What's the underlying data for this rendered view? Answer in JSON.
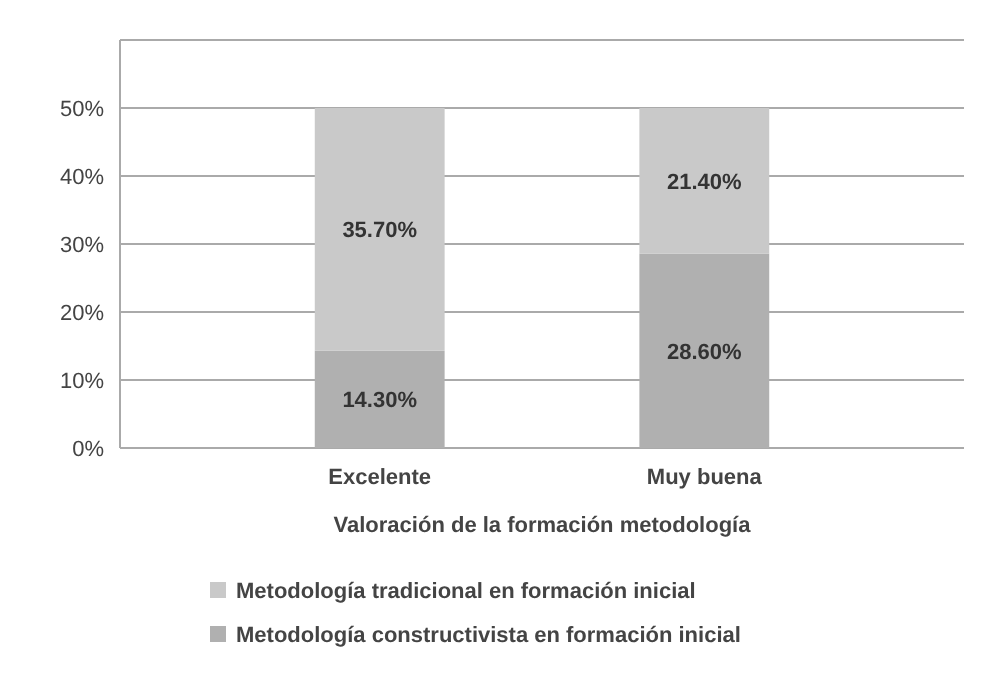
{
  "chart_data": {
    "type": "bar",
    "stacked": true,
    "xlabel": "Valoración de la formación metodología",
    "categories": [
      "Excelente",
      "Muy buena"
    ],
    "series": [
      {
        "name": "Metodología constructivista en formación inicial",
        "color": "#b0b0b0",
        "values": [
          14.3,
          28.6
        ],
        "value_labels": [
          "14.30%",
          "28.60%"
        ]
      },
      {
        "name": "Metodología tradicional en formación inicial",
        "color": "#c9c9c9",
        "values": [
          35.7,
          21.4
        ],
        "value_labels": [
          "35.70%",
          "21.40%"
        ]
      }
    ],
    "ylim": [
      0,
      60
    ],
    "yticks": [
      {
        "value": 0,
        "label": "0%"
      },
      {
        "value": 10,
        "label": "10%"
      },
      {
        "value": 20,
        "label": "20%"
      },
      {
        "value": 30,
        "label": "30%"
      },
      {
        "value": 40,
        "label": "40%"
      },
      {
        "value": 50,
        "label": "50%"
      },
      {
        "value": 60,
        "label": null
      }
    ],
    "grid": "y",
    "legend": "bottom"
  }
}
